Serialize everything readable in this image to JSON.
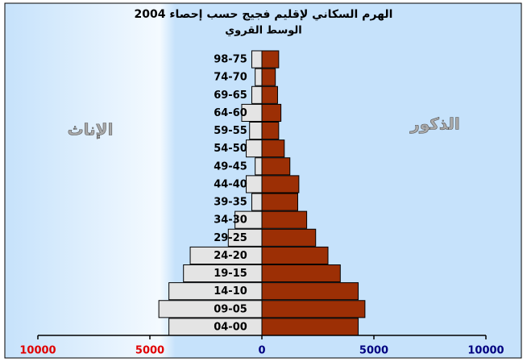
{
  "chart_data": {
    "type": "pyramid",
    "title": "الهرم السكاني لإقليم فجيج حسب إحصاء 2004",
    "subtitle": "الوسط القروي",
    "categories": [
      "98-75",
      "74-70",
      "69-65",
      "64-60",
      "59-55",
      "54-50",
      "49-45",
      "44-40",
      "39-35",
      "34-30",
      "29-25",
      "24-20",
      "19-15",
      "14-10",
      "09-05",
      "04-00"
    ],
    "series": [
      {
        "name": "الإناث",
        "color": "#e4e4e4",
        "values": [
          -450,
          -300,
          -450,
          -900,
          -550,
          -700,
          -300,
          -700,
          -450,
          -1200,
          -1500,
          -3200,
          -3500,
          -4150,
          -4600,
          -4150
        ]
      },
      {
        "name": "الذكور",
        "color": "#9c2f05",
        "values": [
          750,
          600,
          700,
          850,
          750,
          1000,
          1250,
          1650,
          1600,
          2000,
          2400,
          2950,
          3500,
          4300,
          4600,
          4300
        ]
      }
    ],
    "xlim": [
      -10000,
      10000
    ],
    "xticks": [
      {
        "value": -10000,
        "label": "10000"
      },
      {
        "value": -5000,
        "label": "5000"
      },
      0,
      5000,
      10000
    ]
  }
}
